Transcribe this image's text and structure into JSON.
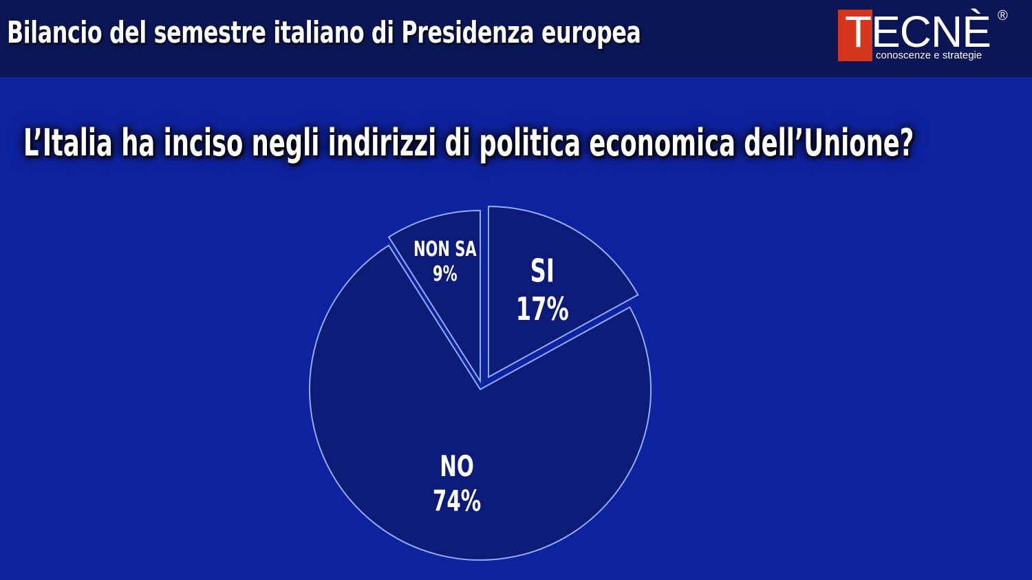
{
  "header": {
    "title": "Bilancio del semestre italiano di Presidenza europea",
    "logo": {
      "word": "TECNÈ",
      "registered": "®",
      "tagline": "conoscenze e strategie",
      "brand_color": "#d4361b"
    }
  },
  "chart_data": {
    "type": "pie",
    "title": "L’Italia ha inciso negli indirizzi di politica economica dell’Unione?",
    "slices": [
      {
        "label": "SI",
        "value": 17,
        "value_label": "17%",
        "color": "#0c1a78"
      },
      {
        "label": "NO",
        "value": 74,
        "value_label": "74%",
        "color": "#0c1a78"
      },
      {
        "label": "NON SA",
        "value": 9,
        "value_label": "9%",
        "color": "#0c1a78"
      }
    ],
    "border_color": "#8fb0ff",
    "legend": "none"
  }
}
